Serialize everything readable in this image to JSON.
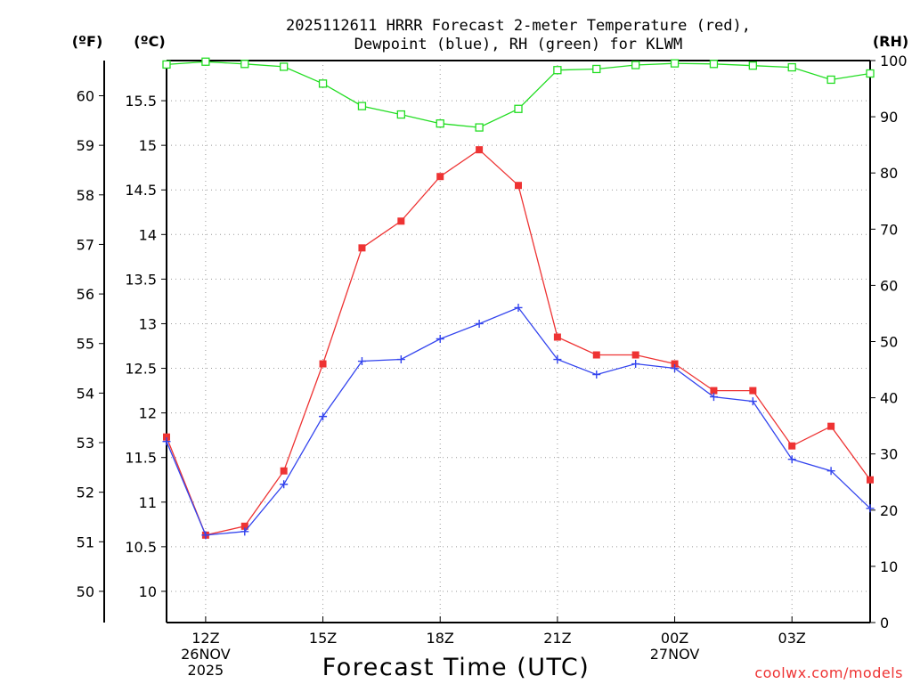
{
  "title_line1": "2025112611 HRRR Forecast 2-meter Temperature (red),",
  "title_line2": "Dewpoint (blue), RH (green) for KLWM",
  "unit_f": "(ºF)",
  "unit_c": "(ºC)",
  "unit_rh": "(RH)",
  "xlabel": "Forecast Time (UTC)",
  "watermark": "coolwx.com/models",
  "colors": {
    "temp": "#ee3333",
    "dewpoint": "#3344ee",
    "rh": "#22dd22",
    "grid": "#999999"
  },
  "chart_data": {
    "type": "line",
    "title": "2025112611 HRRR Forecast 2-meter Temperature (red), Dewpoint (blue), RH (green) for KLWM",
    "xlabel": "Forecast Time (UTC)",
    "x": [
      11,
      12,
      13,
      14,
      15,
      16,
      17,
      18,
      19,
      20,
      21,
      22,
      23,
      24,
      25,
      26,
      27,
      28,
      29
    ],
    "xlim": [
      11,
      29
    ],
    "xticks": [
      {
        "x": 12,
        "lines": [
          "12Z",
          "26NOV",
          "2025"
        ]
      },
      {
        "x": 15,
        "lines": [
          "15Z"
        ]
      },
      {
        "x": 18,
        "lines": [
          "18Z"
        ]
      },
      {
        "x": 21,
        "lines": [
          "21Z"
        ]
      },
      {
        "x": 24,
        "lines": [
          "00Z",
          "27NOV"
        ]
      },
      {
        "x": 27,
        "lines": [
          "03Z"
        ]
      }
    ],
    "y_c": {
      "label": "(ºC)",
      "lim": [
        9.65,
        15.95
      ],
      "ticks": [
        10,
        10.5,
        11,
        11.5,
        12,
        12.5,
        13,
        13.5,
        14,
        14.5,
        15,
        15.5
      ]
    },
    "y_f": {
      "label": "(ºF)",
      "ticks": [
        50,
        51,
        52,
        53,
        54,
        55,
        56,
        57,
        58,
        59,
        60
      ]
    },
    "y_rh": {
      "label": "(RH)",
      "lim": [
        0,
        100
      ],
      "ticks": [
        0,
        10,
        20,
        30,
        40,
        50,
        60,
        70,
        80,
        90,
        100
      ]
    },
    "series": [
      {
        "name": "Temperature",
        "axis": "c",
        "marker": "square",
        "values": [
          11.73,
          10.63,
          10.73,
          11.35,
          12.55,
          13.85,
          14.15,
          14.65,
          14.95,
          14.55,
          12.85,
          12.65,
          12.65,
          12.55,
          12.25,
          12.25,
          11.63,
          11.85,
          11.25
        ]
      },
      {
        "name": "Dewpoint",
        "axis": "c",
        "marker": "plus",
        "values": [
          11.68,
          10.63,
          10.67,
          11.2,
          11.96,
          12.58,
          12.6,
          12.83,
          13.0,
          13.18,
          12.6,
          12.43,
          12.55,
          12.5,
          12.18,
          12.13,
          11.48,
          11.35,
          10.93
        ]
      },
      {
        "name": "RH",
        "axis": "rh",
        "marker": "open-square",
        "values": [
          99.3,
          99.8,
          99.4,
          98.9,
          95.9,
          91.9,
          90.4,
          88.8,
          88.1,
          91.4,
          98.3,
          98.5,
          99.2,
          99.5,
          99.4,
          99.1,
          98.8,
          96.6,
          97.7
        ]
      }
    ]
  }
}
